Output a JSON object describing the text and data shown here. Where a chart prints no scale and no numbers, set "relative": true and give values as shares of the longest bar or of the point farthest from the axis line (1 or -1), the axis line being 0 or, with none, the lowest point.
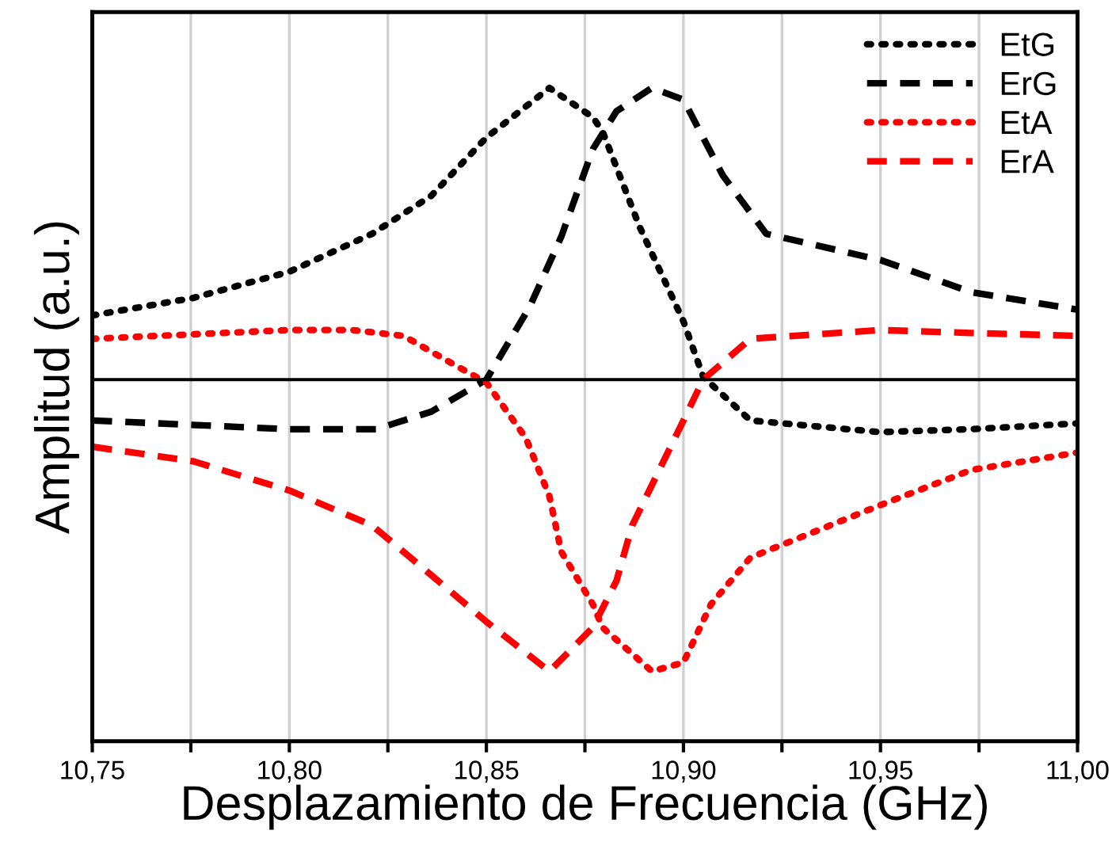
{
  "chart_data": {
    "type": "line",
    "relative": true,
    "xlabel": "Desplazamiento de Frecuencia (GHz)",
    "ylabel": "Amplitud (a.u.)",
    "xlim": [
      10.75,
      11.0
    ],
    "xticks": [
      {
        "value": 10.75,
        "label": "10,75"
      },
      {
        "value": 10.775,
        "label": null
      },
      {
        "value": 10.8,
        "label": "10,80"
      },
      {
        "value": 10.825,
        "label": null
      },
      {
        "value": 10.85,
        "label": "10,85"
      },
      {
        "value": 10.875,
        "label": null
      },
      {
        "value": 10.9,
        "label": "10,90"
      },
      {
        "value": 10.925,
        "label": null
      },
      {
        "value": 10.95,
        "label": "10,95"
      },
      {
        "value": 10.975,
        "label": null
      },
      {
        "value": 11.0,
        "label": "11,00"
      }
    ],
    "grid": "x",
    "legend": "top right",
    "marker": "none",
    "series": [
      {
        "name": "EtG",
        "color": "#000000",
        "line_style": "dotted",
        "x": [
          10.75,
          10.7756,
          10.8,
          10.821,
          10.836,
          10.85,
          10.866,
          10.877,
          10.8795,
          10.889,
          10.9,
          10.905,
          10.917,
          10.95,
          10.973,
          11.0
        ],
        "values": [
          0.22,
          0.28,
          0.37,
          0.5,
          0.63,
          0.83,
          1.0,
          0.9,
          0.85,
          0.52,
          0.2,
          0.01,
          -0.14,
          -0.18,
          -0.17,
          -0.15
        ]
      },
      {
        "name": "ErG",
        "color": "#000000",
        "line_style": "dashed",
        "x": [
          10.75,
          10.8,
          10.822,
          10.836,
          10.85,
          10.861,
          10.869,
          10.877,
          10.883,
          10.892,
          10.9,
          10.91,
          10.921,
          10.95,
          10.973,
          11.0
        ],
        "values": [
          -0.14,
          -0.17,
          -0.17,
          -0.11,
          0.0,
          0.25,
          0.49,
          0.79,
          0.92,
          1.0,
          0.96,
          0.7,
          0.5,
          0.41,
          0.3,
          0.24
        ]
      },
      {
        "name": "EtA",
        "color": "#ff0000",
        "line_style": "dotted",
        "x": [
          10.75,
          10.8,
          10.816,
          10.829,
          10.842,
          10.85,
          10.86,
          10.866,
          10.869,
          10.877,
          10.8795,
          10.892,
          10.9,
          10.907,
          10.917,
          10.95,
          10.973,
          11.0
        ],
        "values": [
          0.14,
          0.17,
          0.17,
          0.15,
          0.05,
          -0.01,
          -0.2,
          -0.4,
          -0.59,
          -0.77,
          -0.85,
          -1.0,
          -0.97,
          -0.77,
          -0.61,
          -0.43,
          -0.31,
          -0.25
        ]
      },
      {
        "name": "ErA",
        "color": "#ff0000",
        "line_style": "dashed",
        "x": [
          10.75,
          10.7756,
          10.8,
          10.821,
          10.836,
          10.85,
          10.866,
          10.877,
          10.883,
          10.887,
          10.9,
          10.905,
          10.917,
          10.95,
          10.973,
          11.0
        ],
        "values": [
          -0.23,
          -0.28,
          -0.38,
          -0.5,
          -0.67,
          -0.83,
          -1.0,
          -0.85,
          -0.69,
          -0.5,
          -0.14,
          0.0,
          0.14,
          0.17,
          0.16,
          0.15
        ]
      }
    ]
  }
}
